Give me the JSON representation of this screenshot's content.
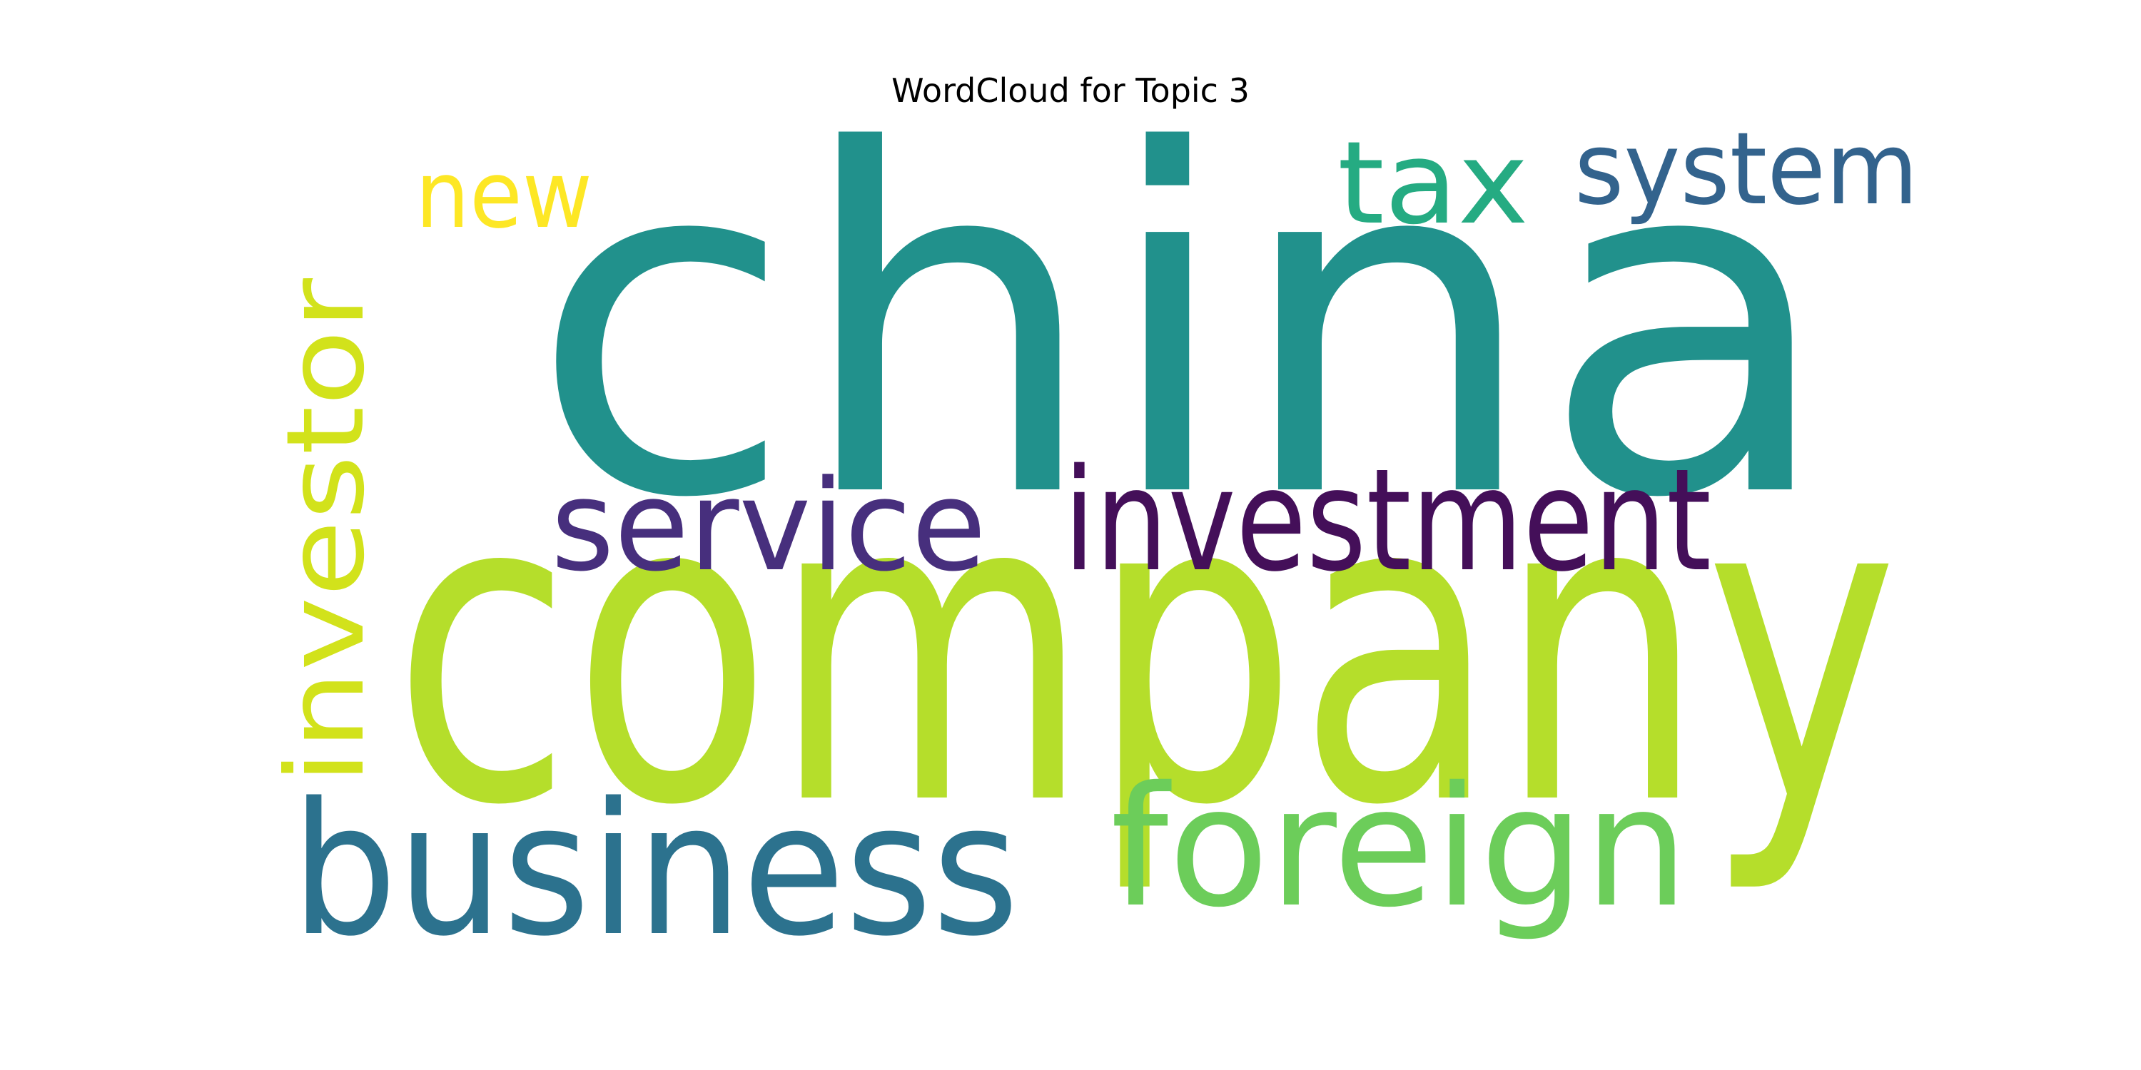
{
  "title": "WordCloud for Topic 3",
  "words": [
    {
      "text": "china",
      "color": "#21918c"
    },
    {
      "text": "company",
      "color": "#b5de2b"
    },
    {
      "text": "investment",
      "color": "#440f59"
    },
    {
      "text": "service",
      "color": "#472f7d"
    },
    {
      "text": "business",
      "color": "#2c728e"
    },
    {
      "text": "foreign",
      "color": "#6ccd5a"
    },
    {
      "text": "investor",
      "color": "#d2e21b"
    },
    {
      "text": "system",
      "color": "#33638d"
    },
    {
      "text": "tax",
      "color": "#25ab82"
    },
    {
      "text": "new",
      "color": "#fde725"
    }
  ]
}
